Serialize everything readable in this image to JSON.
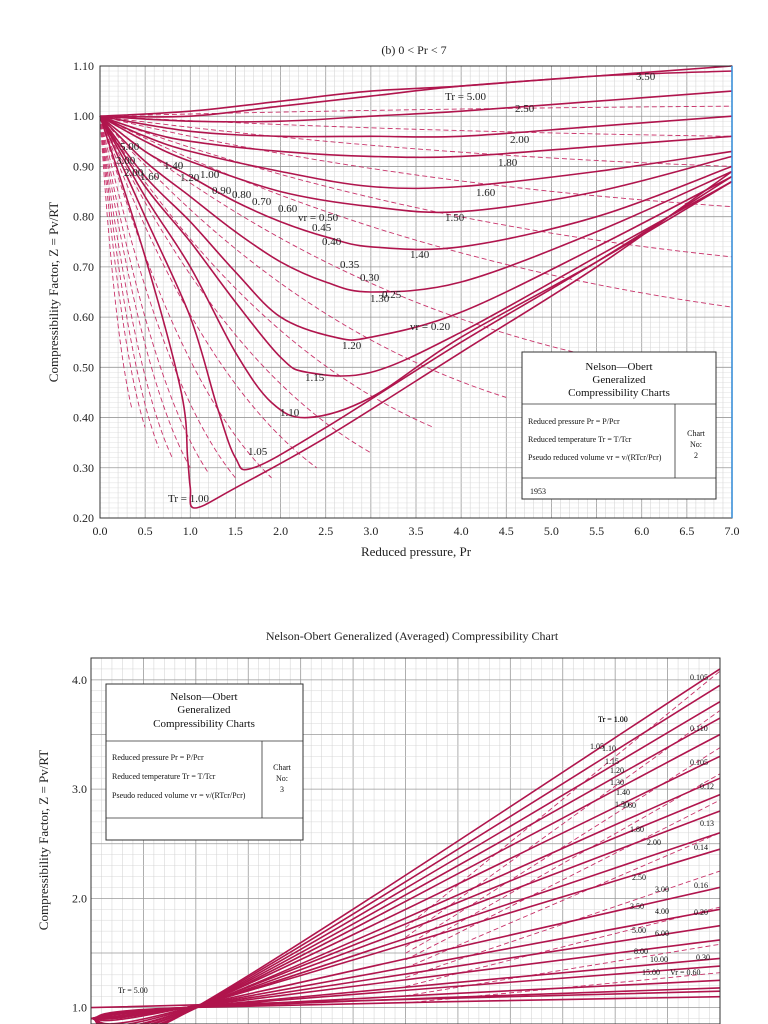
{
  "chart_data": [
    {
      "type": "line",
      "title": "(b) 0 < Pr < 7",
      "xlabel": "Reduced pressure, Pr",
      "ylabel": "Compressibility Factor, Z = Pv/RT",
      "xlim": [
        0,
        7
      ],
      "ylim": [
        0.2,
        1.1
      ],
      "xticks": [
        "0.0",
        "0.5",
        "1.0",
        "1.5",
        "2.0",
        "2.5",
        "3.0",
        "3.5",
        "4.0",
        "4.5",
        "5.0",
        "5.5",
        "6.0",
        "6.5",
        "7.0"
      ],
      "yticks": [
        "0.20",
        "0.30",
        "0.40",
        "0.50",
        "0.60",
        "0.70",
        "0.80",
        "0.90",
        "1.00",
        "1.10"
      ],
      "grid": true,
      "series": [
        {
          "name": "Tr = 1.00",
          "x": [
            0,
            0.5,
            0.9,
            0.97,
            1.0,
            1.05,
            1.5,
            2.5,
            4,
            5.5,
            7
          ],
          "y": [
            1,
            0.72,
            0.45,
            0.32,
            0.26,
            0.22,
            0.26,
            0.36,
            0.53,
            0.7,
            0.89
          ]
        },
        {
          "name": "1.05",
          "x": [
            0,
            0.5,
            1.0,
            1.3,
            1.5,
            1.7,
            2.5,
            4,
            5.5,
            7
          ],
          "y": [
            1,
            0.8,
            0.6,
            0.42,
            0.32,
            0.3,
            0.38,
            0.55,
            0.71,
            0.88
          ]
        },
        {
          "name": "1.10",
          "x": [
            0,
            0.5,
            1,
            1.5,
            1.9,
            2.3,
            3,
            4,
            5.5,
            7
          ],
          "y": [
            1,
            0.84,
            0.7,
            0.53,
            0.43,
            0.4,
            0.44,
            0.56,
            0.71,
            0.87
          ]
        },
        {
          "name": "1.15",
          "x": [
            0,
            0.5,
            1,
            1.5,
            2,
            2.3,
            3,
            4,
            5.5,
            7
          ],
          "y": [
            1,
            0.86,
            0.75,
            0.63,
            0.52,
            0.49,
            0.49,
            0.57,
            0.72,
            0.87
          ]
        },
        {
          "name": "1.20",
          "x": [
            0,
            0.5,
            1,
            1.5,
            2,
            2.6,
            3,
            4,
            5.5,
            7
          ],
          "y": [
            1,
            0.88,
            0.79,
            0.69,
            0.6,
            0.56,
            0.56,
            0.61,
            0.74,
            0.88
          ]
        },
        {
          "name": "1.30",
          "x": [
            0,
            0.5,
            1,
            1.5,
            2,
            2.5,
            3,
            4,
            5.5,
            7
          ],
          "y": [
            1,
            0.91,
            0.84,
            0.77,
            0.71,
            0.67,
            0.65,
            0.67,
            0.77,
            0.89
          ]
        },
        {
          "name": "1.40",
          "x": [
            0,
            0.5,
            1,
            1.5,
            2,
            2.5,
            3,
            4,
            5.5,
            7
          ],
          "y": [
            1,
            0.93,
            0.88,
            0.83,
            0.79,
            0.76,
            0.74,
            0.74,
            0.8,
            0.9
          ]
        },
        {
          "name": "1.50",
          "x": [
            0,
            0.5,
            1,
            2,
            3,
            4,
            5.5,
            7
          ],
          "y": [
            1,
            0.95,
            0.91,
            0.85,
            0.82,
            0.81,
            0.85,
            0.92
          ]
        },
        {
          "name": "1.60",
          "x": [
            0,
            0.5,
            1,
            2,
            3,
            4,
            5.5,
            7
          ],
          "y": [
            1,
            0.96,
            0.93,
            0.89,
            0.86,
            0.86,
            0.89,
            0.93
          ]
        },
        {
          "name": "1.80",
          "x": [
            0,
            0.5,
            1,
            2,
            3,
            4,
            5.5,
            7
          ],
          "y": [
            1,
            0.97,
            0.95,
            0.93,
            0.92,
            0.92,
            0.94,
            0.96
          ]
        },
        {
          "name": "2.00",
          "x": [
            0,
            1,
            2,
            3,
            4,
            5.5,
            7
          ],
          "y": [
            1,
            0.97,
            0.96,
            0.96,
            0.96,
            0.98,
            1.0
          ]
        },
        {
          "name": "2.50",
          "x": [
            0,
            1,
            2,
            3,
            4,
            5.5,
            7
          ],
          "y": [
            1,
            0.99,
            0.99,
            1.0,
            1.01,
            1.03,
            1.05
          ]
        },
        {
          "name": "Tr = 5.00",
          "x": [
            0,
            1,
            2,
            3,
            4,
            5.5,
            7
          ],
          "y": [
            1,
            1.01,
            1.03,
            1.05,
            1.06,
            1.08,
            1.09
          ]
        },
        {
          "name": "3.50",
          "x": [
            0,
            1,
            2,
            3,
            4,
            5.5,
            7
          ],
          "y": [
            1,
            1.0,
            1.02,
            1.04,
            1.06,
            1.08,
            1.1
          ]
        }
      ],
      "annotations": [
        "Tr = 5.00",
        "3.50",
        "2.50",
        "2.00",
        "1.80",
        "1.60",
        "1.50",
        "1.40",
        "1.30",
        "1.20",
        "1.15",
        "1.10",
        "1.05",
        "Tr = 1.00",
        "vr = 0.50",
        "0.45",
        "0.40",
        "0.35",
        "0.30",
        "0.25",
        "vr = 0.20",
        "5.00",
        "3.00",
        "2.00",
        "1.60",
        "1.40",
        "1.20",
        "1.00",
        "0.90",
        "0.80",
        "0.70",
        "0.60"
      ]
    },
    {
      "type": "line",
      "title": "Nelson-Obert Generalized (Averaged) Compressibility Chart",
      "xlabel": "",
      "ylabel": "Compressibility Factor, Z = Pv/RT",
      "ylim": [
        0.85,
        4.2
      ],
      "yticks": [
        "1.0",
        "2.0",
        "3.0",
        "4.0"
      ],
      "grid": true,
      "series": [
        {
          "name": "Tr = 1.00",
          "x": [
            0,
            0.15,
            1
          ],
          "y": [
            0.9,
            0.95,
            4.1
          ]
        },
        {
          "name": "1.05",
          "x": [
            0,
            0.15,
            1
          ],
          "y": [
            0.9,
            0.95,
            3.95
          ]
        },
        {
          "name": "1.10",
          "x": [
            0,
            0.15,
            1
          ],
          "y": [
            0.9,
            0.95,
            3.8
          ]
        },
        {
          "name": "1.15",
          "x": [
            0,
            0.15,
            1
          ],
          "y": [
            0.9,
            0.95,
            3.65
          ]
        },
        {
          "name": "1.20",
          "x": [
            0,
            0.15,
            1
          ],
          "y": [
            0.9,
            0.95,
            3.5
          ]
        },
        {
          "name": "1.30",
          "x": [
            0,
            0.15,
            1
          ],
          "y": [
            0.9,
            0.96,
            3.3
          ]
        },
        {
          "name": "1.40",
          "x": [
            0,
            0.15,
            1
          ],
          "y": [
            0.9,
            0.96,
            3.1
          ]
        },
        {
          "name": "1.50",
          "x": [
            0,
            0.15,
            1
          ],
          "y": [
            0.9,
            0.97,
            2.95
          ]
        },
        {
          "name": "1.60",
          "x": [
            0,
            0.15,
            1
          ],
          "y": [
            0.9,
            0.97,
            2.8
          ]
        },
        {
          "name": "1.80",
          "x": [
            0,
            0.15,
            1
          ],
          "y": [
            0.9,
            0.98,
            2.6
          ]
        },
        {
          "name": "2.00",
          "x": [
            0,
            0.15,
            1
          ],
          "y": [
            0.9,
            0.99,
            2.45
          ]
        },
        {
          "name": "2.50",
          "x": [
            0,
            0.15,
            1
          ],
          "y": [
            0.9,
            1.0,
            2.1
          ]
        },
        {
          "name": "3.00",
          "x": [
            0,
            0.15,
            1
          ],
          "y": [
            0.9,
            1.0,
            1.9
          ]
        },
        {
          "name": "3.50",
          "x": [
            0,
            0.15,
            1
          ],
          "y": [
            0.9,
            1.0,
            1.75
          ]
        },
        {
          "name": "4.00",
          "x": [
            0,
            0.15,
            1
          ],
          "y": [
            0.9,
            1.0,
            1.62
          ]
        },
        {
          "name": "5.00",
          "x": [
            0,
            0.15,
            1
          ],
          "y": [
            0.9,
            1.0,
            1.45
          ]
        },
        {
          "name": "6.00",
          "x": [
            0,
            0.15,
            1
          ],
          "y": [
            0.9,
            1.0,
            1.38
          ]
        },
        {
          "name": "8.00",
          "x": [
            0,
            0.15,
            1
          ],
          "y": [
            0.9,
            1.0,
            1.25
          ]
        },
        {
          "name": "10.00",
          "x": [
            0,
            0.15,
            1
          ],
          "y": [
            0.9,
            1.0,
            1.18
          ]
        },
        {
          "name": "15.00",
          "x": [
            0,
            0.15,
            1
          ],
          "y": [
            0.9,
            1.0,
            1.1
          ]
        },
        {
          "name": "Tr = 5.00",
          "x": [
            0,
            1
          ],
          "y": [
            1.0,
            1.15
          ]
        }
      ],
      "annotations": [
        "0.105",
        "0.110",
        "0.105",
        "0.12",
        "0.13",
        "0.14",
        "0.16",
        "0.20",
        "0.30",
        "Vr = 0.60",
        "Tr = 1.00",
        "Tr = 5.00"
      ]
    }
  ],
  "chart1_box": {
    "title1": "Nelson—Obert",
    "title2": "Generalized",
    "title3": "Compressibility Charts",
    "line1": "Reduced pressure Pr = P/Pcr",
    "line2": "Reduced temperature Tr = T/Tcr",
    "line3": "Pseudo reduced volume vr = v/(RTcr/Pcr)",
    "chart_label": "Chart",
    "no_label": "No:",
    "no_value": "2",
    "year": "1953"
  },
  "chart2_box": {
    "title1": "Nelson—Obert",
    "title2": "Generalized",
    "title3": "Compressibility Charts",
    "line1": "Reduced pressure Pr = P/Pcr",
    "line2": "Reduced temperature Tr = T/Tcr",
    "line3": "Pseudo reduced volume vr = v/(RTcr/Pcr)",
    "chart_label": "Chart",
    "no_label": "No:",
    "no_value": "3"
  }
}
